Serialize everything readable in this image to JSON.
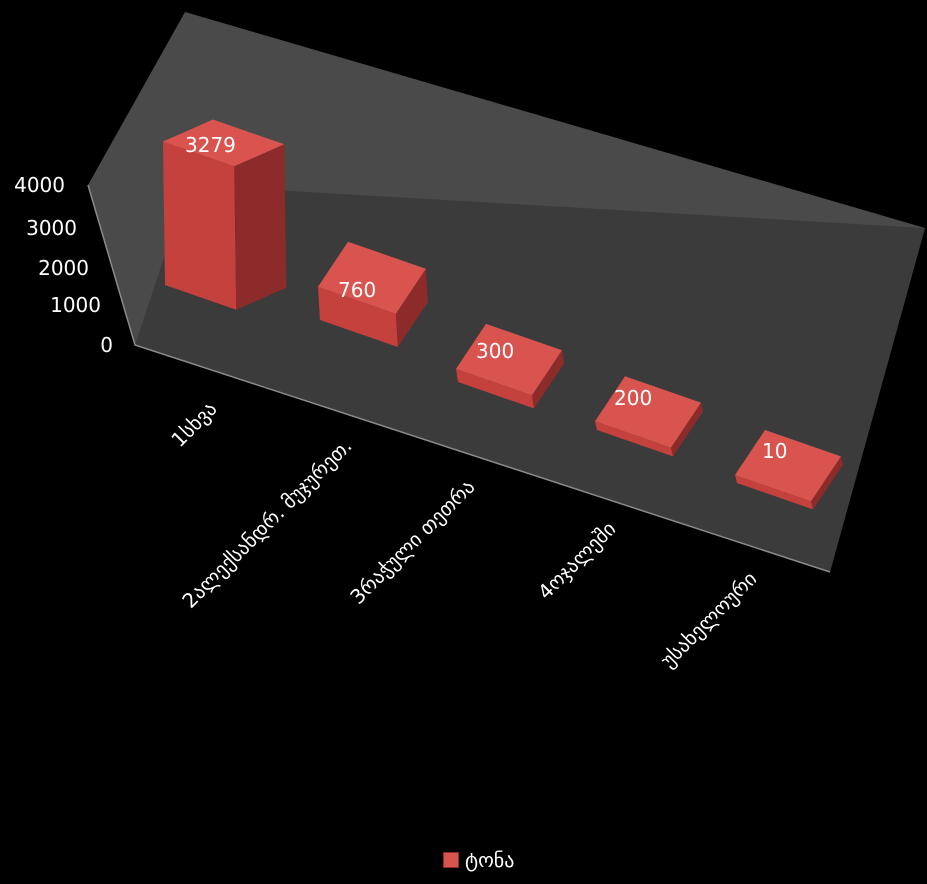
{
  "chart_data": {
    "type": "bar",
    "title": "",
    "xlabel": "",
    "ylabel": "",
    "categories": [
      "1სხვა",
      "2ალექსანდრ. მუჯურეთ.",
      "3რაჭული თეთრა",
      "4ოჯალეში",
      "უსახელოური"
    ],
    "series": [
      {
        "name": "ტონა",
        "values": [
          3279,
          760,
          300,
          200,
          10
        ]
      }
    ],
    "yticks": [
      "0",
      "1000",
      "2000",
      "3000",
      "4000"
    ],
    "ylim": [
      0,
      4000
    ],
    "legend_position": "bottom",
    "grid": false,
    "three_d": true
  },
  "colors": {
    "background": "#000000",
    "floor": "#3a3a3a",
    "back_wall": "#4a4a4a",
    "bar_top": "#d9534f",
    "bar_front": "#c4413e",
    "bar_side": "#8c2b2a",
    "text": "#ffffff"
  }
}
